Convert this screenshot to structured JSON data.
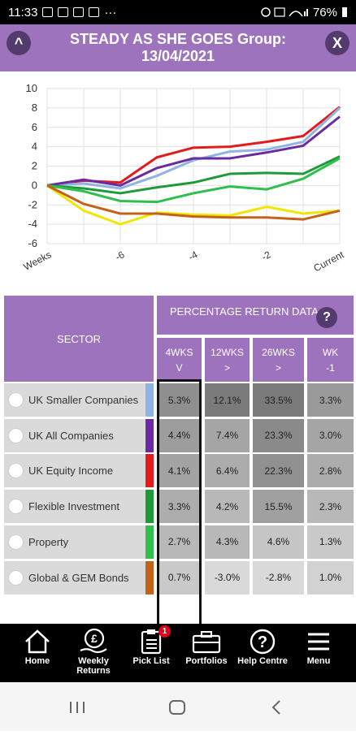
{
  "status_bar": {
    "time": "11:33",
    "more": "···",
    "battery": "76%"
  },
  "header": {
    "title_line1": "STEADY AS SHE GOES Group:",
    "title_line2": "13/04/2021",
    "collapse_glyph": "^",
    "close_glyph": "X"
  },
  "chart_data": {
    "type": "line",
    "x": [
      "Weeks",
      "",
      "-6",
      "",
      "-4",
      "",
      "-2",
      "",
      "Current"
    ],
    "ylim": [
      -6,
      10
    ],
    "yticks": [
      10,
      8,
      6,
      4,
      2,
      0,
      -2,
      -4,
      -6
    ],
    "grid": true,
    "series": [
      {
        "color": "#e21b1b",
        "values": [
          0,
          0.5,
          0.3,
          2.9,
          3.9,
          4.0,
          4.5,
          5.1,
          8.1
        ]
      },
      {
        "color": "#8fb3e3",
        "values": [
          0,
          0.2,
          -0.3,
          1.0,
          2.6,
          3.5,
          3.7,
          4.5,
          8.0
        ]
      },
      {
        "color": "#6a2ba1",
        "values": [
          0,
          0.6,
          0.0,
          1.8,
          2.8,
          2.8,
          3.4,
          4.1,
          7.1
        ]
      },
      {
        "color": "#1f9a3b",
        "values": [
          0,
          -0.3,
          -0.8,
          -0.2,
          0.3,
          1.2,
          1.3,
          1.2,
          3.0
        ]
      },
      {
        "color": "#2fbf4d",
        "values": [
          0,
          -0.6,
          -1.6,
          -1.7,
          -0.8,
          -0.1,
          -0.4,
          0.7,
          2.8
        ]
      },
      {
        "color": "#f2e600",
        "values": [
          0,
          -2.6,
          -4.0,
          -2.8,
          -3.0,
          -3.1,
          -2.2,
          -2.9,
          -2.6
        ]
      },
      {
        "color": "#c4621b",
        "values": [
          0,
          -1.9,
          -2.9,
          -2.9,
          -3.2,
          -3.3,
          -3.3,
          -3.5,
          -2.6
        ]
      }
    ]
  },
  "table": {
    "sector_header": "SECTOR",
    "prd_header": "PERCENTAGE RETURN DATA",
    "help_glyph": "?",
    "columns": [
      {
        "label": "4WKS",
        "sort": "V"
      },
      {
        "label": "12WKS",
        "sort": ">"
      },
      {
        "label": "26WKS",
        "sort": ">"
      },
      {
        "label": "WK",
        "sort": "-1"
      }
    ],
    "rows": [
      {
        "name": "UK Smaller Companies",
        "color": "#8fb3e3",
        "values": [
          "5.3%",
          "12.1%",
          "33.5%",
          "3.3%"
        ]
      },
      {
        "name": "UK All Companies",
        "color": "#6a2ba1",
        "values": [
          "4.4%",
          "7.4%",
          "23.3%",
          "3.0%"
        ]
      },
      {
        "name": "UK Equity Income",
        "color": "#e21b1b",
        "values": [
          "4.1%",
          "6.4%",
          "22.3%",
          "2.8%"
        ]
      },
      {
        "name": "Flexible Investment",
        "color": "#1f9a3b",
        "values": [
          "3.3%",
          "4.2%",
          "15.5%",
          "2.3%"
        ]
      },
      {
        "name": "Property",
        "color": "#2fbf4d",
        "values": [
          "2.7%",
          "4.3%",
          "4.6%",
          "1.3%"
        ]
      },
      {
        "name": "Global & GEM Bonds",
        "color": "#c4621b",
        "values": [
          "0.7%",
          "-3.0%",
          "-2.8%",
          "1.0%"
        ]
      }
    ],
    "shades": [
      [
        "#8f8f8f",
        "#7a7a7a",
        "#7a7a7a",
        "#9a9a9a"
      ],
      [
        "#9d9d9d",
        "#a5a5a5",
        "#8a8a8a",
        "#a5a5a5"
      ],
      [
        "#a3a3a3",
        "#acacac",
        "#909090",
        "#acacac"
      ],
      [
        "#adadad",
        "#b8b8b8",
        "#a0a0a0",
        "#b8b8b8"
      ],
      [
        "#b8b8b8",
        "#b8b8b8",
        "#c5c5c5",
        "#c9c9c9"
      ],
      [
        "#c9c9c9",
        "#d9d9d9",
        "#d9d9d9",
        "#d2d2d2"
      ]
    ]
  },
  "bottom_nav": [
    {
      "label": "Home",
      "icon": "home-icon"
    },
    {
      "label": "Weekly\nReturns",
      "icon": "pound-hand-icon"
    },
    {
      "label": "Pick List",
      "icon": "clipboard-icon",
      "badge": "1"
    },
    {
      "label": "Portfolios",
      "icon": "briefcase-icon"
    },
    {
      "label": "Help Centre",
      "icon": "help-icon",
      "glyph": "?"
    },
    {
      "label": "Menu",
      "icon": "menu-icon"
    }
  ]
}
